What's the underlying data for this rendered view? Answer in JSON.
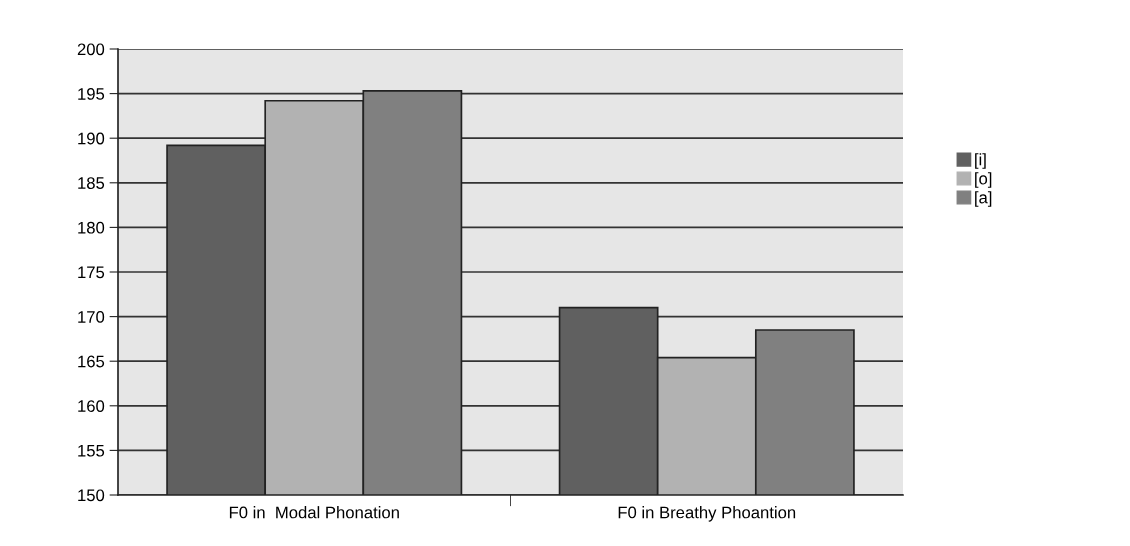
{
  "chart_data": {
    "type": "bar",
    "categories": [
      "F0 in  Modal Phonation",
      "F0 in Breathy Phoantion"
    ],
    "series": [
      {
        "name": "[i]",
        "color": "#606060",
        "values": [
          189.2,
          171.0
        ]
      },
      {
        "name": "[o]",
        "color": "#b2b2b2",
        "values": [
          194.2,
          165.4
        ]
      },
      {
        "name": "[a]",
        "color": "#808080",
        "values": [
          195.3,
          168.5
        ]
      }
    ],
    "ylim": [
      150,
      200
    ],
    "yticks": [
      150,
      155,
      160,
      165,
      170,
      175,
      180,
      185,
      190,
      195,
      200
    ],
    "grid": "y",
    "legend": "right"
  }
}
